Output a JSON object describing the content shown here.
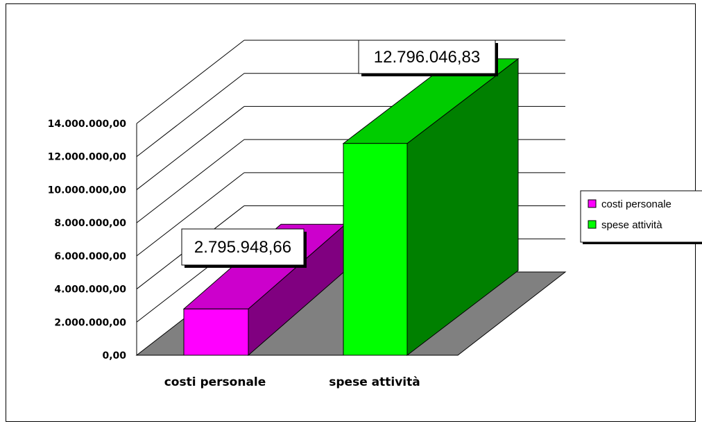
{
  "chart_data": {
    "type": "bar",
    "title": "",
    "xlabel": "",
    "ylabel": "",
    "ylim": [
      0,
      14000000
    ],
    "y_ticks": [
      "0,00",
      "2.000.000,00",
      "4.000.000,00",
      "6.000.000,00",
      "8.000.000,00",
      "10.000.000,00",
      "12.000.000,00",
      "14.000.000,00"
    ],
    "categories": [
      "costi personale",
      "spese attività"
    ],
    "values": [
      2795948.66,
      12796046.83
    ],
    "data_labels": [
      "2.795.948,66",
      "12.796.046,83"
    ],
    "colors": {
      "costi_personale": {
        "front": "#ff00ff",
        "top": "#cc00cc",
        "side": "#800080"
      },
      "spese_attivita": {
        "front": "#00ff00",
        "top": "#00cc00",
        "side": "#008000"
      },
      "floor": "#808080"
    },
    "style": "3d",
    "grid": true,
    "legend": {
      "position": "right",
      "entries": [
        "costi personale",
        "spese attività"
      ]
    }
  }
}
